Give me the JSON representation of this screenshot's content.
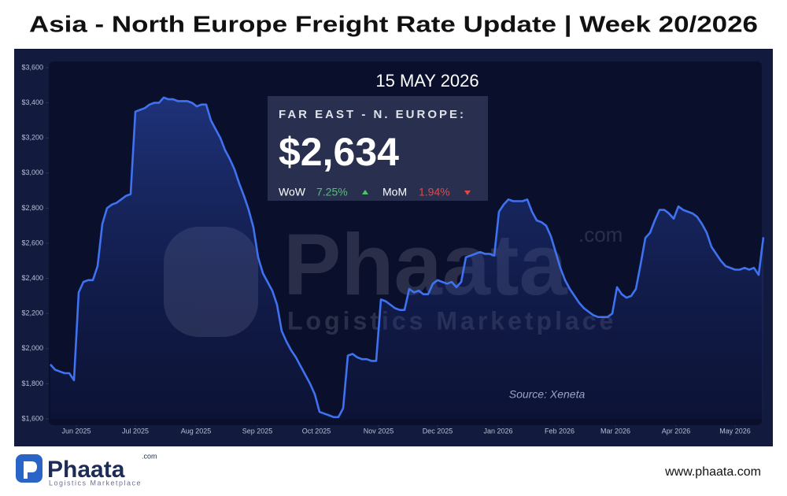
{
  "chart_data": {
    "type": "line",
    "title": "Asia - North Europe Freight Rate Update | Week 20/2026",
    "date_label": "15 MAY 2026",
    "box": {
      "title": "FAR EAST - N. EUROPE:",
      "value": "$2,634",
      "wow_label": "WoW",
      "wow": "7.25%",
      "mom_label": "MoM",
      "mom": "1.94%"
    },
    "source": "Source: Xeneta",
    "color": "#3f72f0",
    "grid": false,
    "xlim": [
      0,
      151
    ],
    "xticks": [
      {
        "value": 5.5,
        "label": "Jun 2025"
      },
      {
        "value": 18,
        "label": "Jul 2025"
      },
      {
        "value": 30.83,
        "label": "Aug 2025"
      },
      {
        "value": 43.83,
        "label": "Sep 2025"
      },
      {
        "value": 56.33,
        "label": "Oct 2025"
      },
      {
        "value": 69.5,
        "label": "Nov 2025"
      },
      {
        "value": 82,
        "label": "Dec 2025"
      },
      {
        "value": 94.83,
        "label": "Jan 2026"
      },
      {
        "value": 107.83,
        "label": "Feb 2026"
      },
      {
        "value": 119.67,
        "label": "Mar 2026"
      },
      {
        "value": 132.5,
        "label": "Apr 2026"
      },
      {
        "value": 145,
        "label": "May 2026"
      }
    ],
    "ylim": [
      1600,
      3600
    ],
    "yticks": [
      {
        "value": 1600,
        "label": "$1,600"
      },
      {
        "value": 1800,
        "label": "$1,800"
      },
      {
        "value": 2000,
        "label": "$2,000"
      },
      {
        "value": 2200,
        "label": "$2,200"
      },
      {
        "value": 2400,
        "label": "$2,400"
      },
      {
        "value": 2600,
        "label": "$2,600"
      },
      {
        "value": 2800,
        "label": "$2,800"
      },
      {
        "value": 3000,
        "label": "$3,000"
      },
      {
        "value": 3200,
        "label": "$3,200"
      },
      {
        "value": 3400,
        "label": "$3,400"
      },
      {
        "value": 3600,
        "label": "$3,600"
      }
    ],
    "values": [
      1910,
      1880,
      1870,
      1860,
      1860,
      1820,
      2320,
      2380,
      2390,
      2390,
      2470,
      2710,
      2800,
      2820,
      2830,
      2850,
      2870,
      2880,
      3350,
      3360,
      3370,
      3390,
      3400,
      3400,
      3430,
      3420,
      3420,
      3410,
      3410,
      3410,
      3400,
      3380,
      3390,
      3390,
      3300,
      3250,
      3200,
      3130,
      3080,
      3020,
      2940,
      2870,
      2790,
      2690,
      2520,
      2430,
      2380,
      2330,
      2250,
      2100,
      2040,
      1990,
      1950,
      1900,
      1850,
      1800,
      1740,
      1640,
      1630,
      1620,
      1610,
      1610,
      1660,
      1960,
      1970,
      1950,
      1940,
      1940,
      1930,
      1930,
      2280,
      2270,
      2250,
      2230,
      2220,
      2220,
      2340,
      2320,
      2330,
      2310,
      2310,
      2370,
      2390,
      2380,
      2370,
      2380,
      2350,
      2380,
      2520,
      2530,
      2540,
      2550,
      2540,
      2540,
      2530,
      2780,
      2820,
      2850,
      2840,
      2840,
      2840,
      2850,
      2780,
      2730,
      2720,
      2700,
      2640,
      2550,
      2460,
      2390,
      2340,
      2300,
      2260,
      2230,
      2210,
      2190,
      2180,
      2180,
      2180,
      2200,
      2350,
      2310,
      2290,
      2300,
      2340,
      2480,
      2630,
      2660,
      2730,
      2790,
      2790,
      2770,
      2740,
      2810,
      2790,
      2780,
      2770,
      2750,
      2710,
      2660,
      2580,
      2540,
      2500,
      2470,
      2460,
      2450,
      2450,
      2460,
      2450,
      2460,
      2420,
      2634
    ]
  },
  "branding": {
    "watermark": "Phaata",
    "watermark_suffix": ".com",
    "watermark_tagline": "Logistics Marketplace",
    "logo_name": "Phaata",
    "logo_suffix": ".com",
    "logo_tagline": "Logistics Marketplace",
    "website": "www.phaata.com"
  }
}
